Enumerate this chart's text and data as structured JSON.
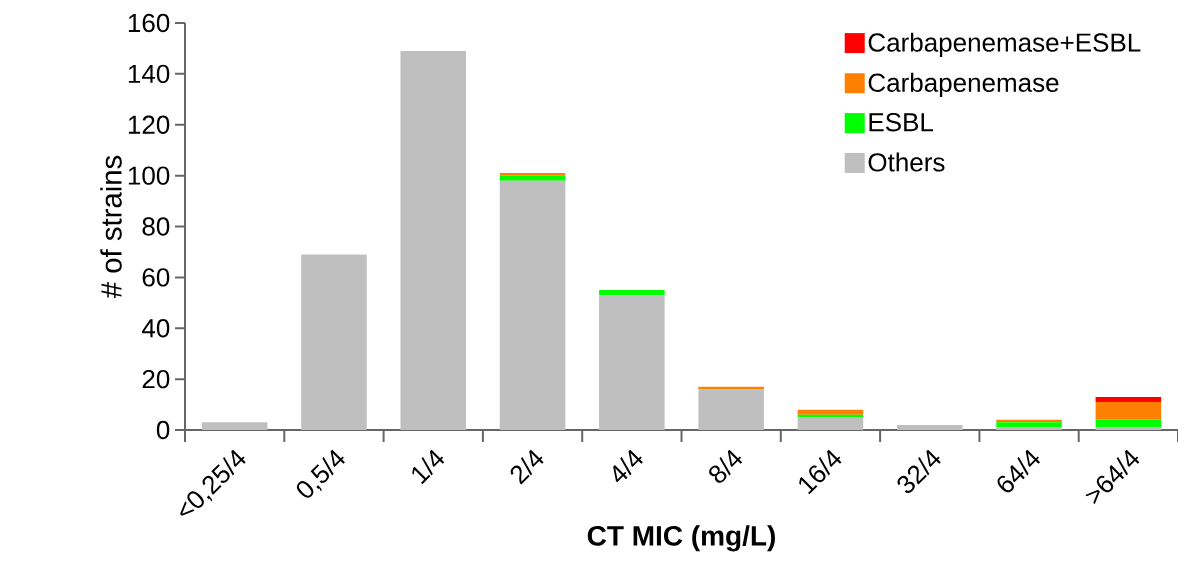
{
  "chart_data": {
    "type": "bar",
    "stacked": true,
    "xlabel": "CT MIC (mg/L)",
    "ylabel": "# of strains",
    "categories": [
      "<0,25/4",
      "0,5/4",
      "1/4",
      "2/4",
      "4/4",
      "8/4",
      "16/4",
      "32/4",
      "64/4",
      ">64/4"
    ],
    "series": [
      {
        "name": "Others",
        "color": "#bfbfbf",
        "values": [
          3,
          69,
          149,
          98,
          53,
          16,
          5,
          2,
          1,
          1
        ]
      },
      {
        "name": "ESBL",
        "color": "#00ff00",
        "values": [
          0,
          0,
          0,
          2,
          2,
          0,
          1,
          0,
          2,
          3
        ]
      },
      {
        "name": "Carbapenemase",
        "color": "#ff8000",
        "values": [
          0,
          0,
          0,
          1,
          0,
          1,
          2,
          0,
          1,
          7
        ]
      },
      {
        "name": "Carbapenemase+ESBL",
        "color": "#ff0000",
        "values": [
          0,
          0,
          0,
          0,
          0,
          0,
          0,
          0,
          0,
          2
        ]
      }
    ],
    "ylim": [
      0,
      160
    ],
    "yticks": [
      0,
      20,
      40,
      60,
      80,
      100,
      120,
      140,
      160
    ],
    "legend": "top right",
    "grid": false
  }
}
